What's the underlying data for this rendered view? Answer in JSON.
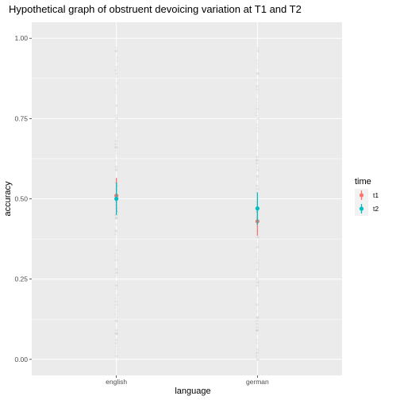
{
  "chart_data": {
    "type": "scatter",
    "title": "Hypothetical graph of obstruent devoicing variation at T1 and T2",
    "xlabel": "language",
    "ylabel": "accuracy",
    "categories": [
      "english",
      "german"
    ],
    "ylim": [
      -0.05,
      1.05
    ],
    "yticks": [
      0.0,
      0.25,
      0.5,
      0.75,
      1.0
    ],
    "ytick_labels": [
      "0.00",
      "0.25",
      "0.50",
      "0.75",
      "1.00"
    ],
    "grid": true,
    "legend": {
      "title": "time",
      "position": "right"
    },
    "series": [
      {
        "name": "t1",
        "color": "#F8766D",
        "points": [
          {
            "category": "english",
            "mean": 0.51,
            "low": 0.46,
            "high": 0.565
          },
          {
            "category": "german",
            "mean": 0.43,
            "low": 0.385,
            "high": 0.475
          }
        ]
      },
      {
        "name": "t2",
        "color": "#00BFC4",
        "points": [
          {
            "category": "english",
            "mean": 0.5,
            "low": 0.45,
            "high": 0.55
          },
          {
            "category": "german",
            "mean": 0.47,
            "low": 0.42,
            "high": 0.52
          }
        ]
      }
    ],
    "raw_points_color": "#d0d0d0",
    "raw_points_alpha": 0.25
  }
}
